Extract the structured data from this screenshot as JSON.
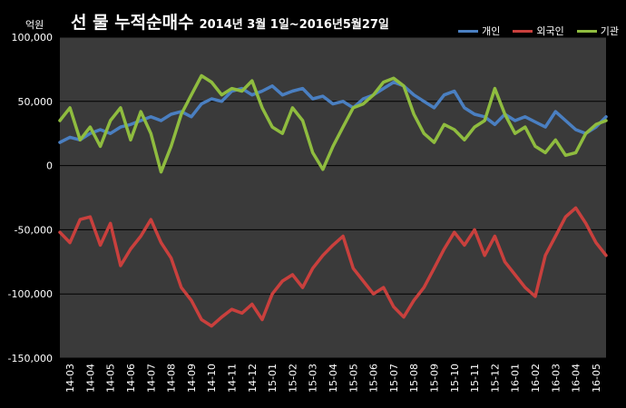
{
  "chart_data": {
    "type": "line",
    "title": "선 물 누적순매수",
    "subtitle": "2014년 3월 1일~2016년5월27일",
    "ylabel": "억원",
    "xlabel": "",
    "ylim": [
      -150000,
      100000
    ],
    "yticks": [
      100000,
      50000,
      0,
      -50000,
      -100000,
      -150000
    ],
    "ytick_labels": [
      "100,000",
      "50,000",
      "0",
      "-50,000",
      "-100,000",
      "-150,000"
    ],
    "categories": [
      "14-03",
      "14-04",
      "14-05",
      "14-06",
      "14-07",
      "14-08",
      "14-09",
      "14-10",
      "14-11",
      "14-12",
      "15-01",
      "15-02",
      "15-03",
      "15-04",
      "15-05",
      "15-06",
      "15-07",
      "15-08",
      "15-09",
      "15-10",
      "15-11",
      "15-12",
      "16-01",
      "16-02",
      "16-03",
      "16-04",
      "16-05"
    ],
    "x": [
      0,
      1,
      2,
      3,
      4,
      5,
      6,
      7,
      8,
      9,
      10,
      11,
      12,
      13,
      14,
      15,
      16,
      17,
      18,
      19,
      20,
      21,
      22,
      23,
      24,
      25,
      26,
      27,
      28,
      29,
      30,
      31,
      32,
      33,
      34,
      35,
      36,
      37,
      38,
      39,
      40,
      41,
      42,
      43,
      44,
      45,
      46,
      47,
      48,
      49,
      50,
      51,
      52,
      53,
      54
    ],
    "grid": true,
    "legend": "top-right",
    "series": [
      {
        "name": "개인",
        "color": "#4a7fc1",
        "values": [
          18000,
          22000,
          20000,
          25000,
          28000,
          25000,
          30000,
          32000,
          35000,
          38000,
          35000,
          40000,
          42000,
          38000,
          48000,
          52000,
          50000,
          58000,
          60000,
          55000,
          58000,
          62000,
          55000,
          58000,
          60000,
          52000,
          54000,
          48000,
          50000,
          45000,
          52000,
          55000,
          60000,
          65000,
          62000,
          55000,
          50000,
          45000,
          55000,
          58000,
          45000,
          40000,
          38000,
          32000,
          40000,
          35000,
          38000,
          34000,
          30000,
          42000,
          35000,
          28000,
          25000,
          30000,
          38000
        ]
      },
      {
        "name": "외국인",
        "color": "#c9403d",
        "values": [
          -52000,
          -60000,
          -42000,
          -40000,
          -62000,
          -45000,
          -78000,
          -65000,
          -55000,
          -42000,
          -60000,
          -72000,
          -95000,
          -105000,
          -120000,
          -125000,
          -118000,
          -112000,
          -115000,
          -108000,
          -120000,
          -100000,
          -90000,
          -85000,
          -95000,
          -80000,
          -70000,
          -62000,
          -55000,
          -80000,
          -90000,
          -100000,
          -95000,
          -110000,
          -118000,
          -105000,
          -95000,
          -80000,
          -65000,
          -52000,
          -62000,
          -50000,
          -70000,
          -55000,
          -75000,
          -85000,
          -95000,
          -102000,
          -70000,
          -55000,
          -40000,
          -33000,
          -45000,
          -60000,
          -70000
        ]
      },
      {
        "name": "기관",
        "color": "#8fbc3f",
        "values": [
          35000,
          45000,
          20000,
          30000,
          15000,
          35000,
          45000,
          20000,
          42000,
          25000,
          -5000,
          15000,
          40000,
          55000,
          70000,
          65000,
          55000,
          60000,
          58000,
          66000,
          45000,
          30000,
          25000,
          45000,
          35000,
          10000,
          -3000,
          15000,
          30000,
          45000,
          48000,
          55000,
          65000,
          68000,
          62000,
          40000,
          25000,
          18000,
          32000,
          28000,
          20000,
          30000,
          35000,
          60000,
          40000,
          25000,
          30000,
          15000,
          10000,
          20000,
          8000,
          10000,
          25000,
          32000,
          35000
        ]
      }
    ]
  }
}
